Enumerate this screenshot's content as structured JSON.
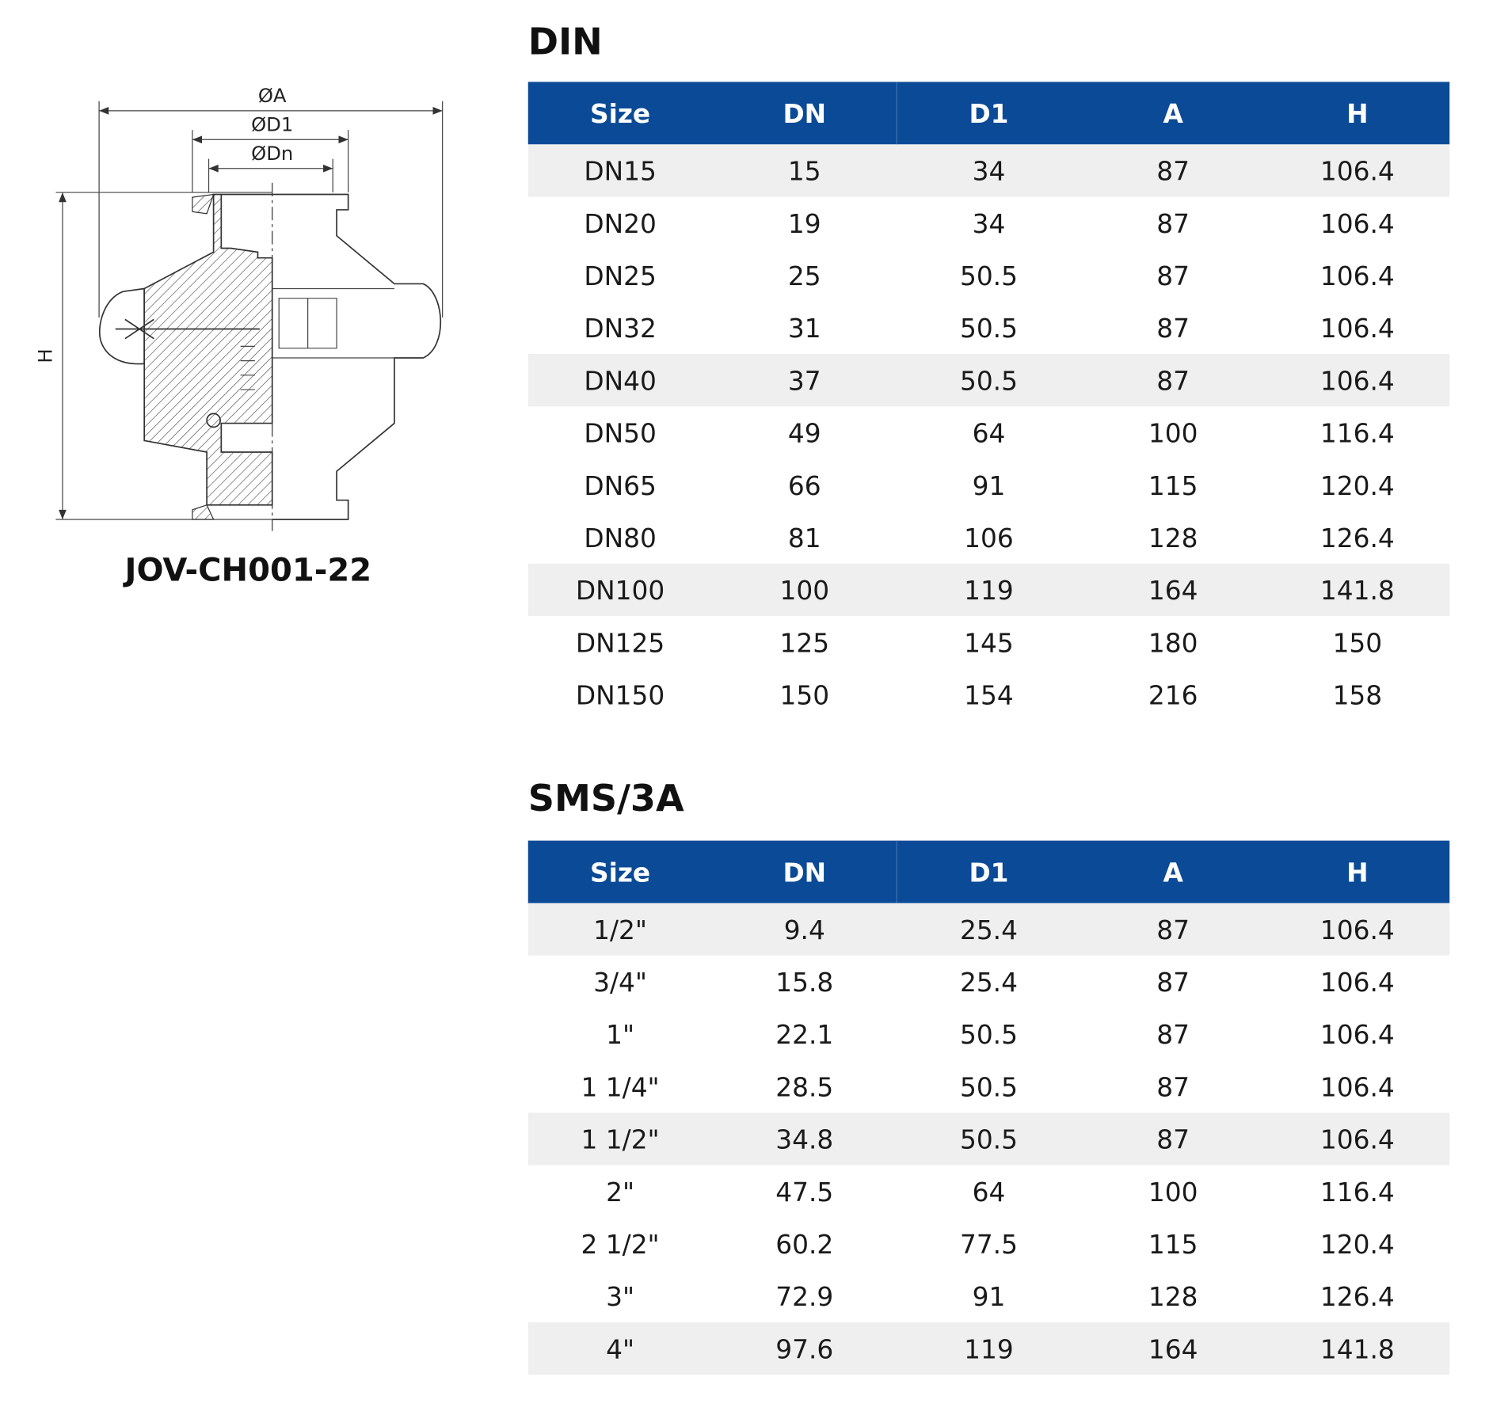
{
  "drawing": {
    "labels": {
      "a": "ØA",
      "d1": "ØD1",
      "dn": "ØDn",
      "h": "H"
    },
    "model": "JOV-CH001-22"
  },
  "tables": [
    {
      "title": "DIN",
      "headers": [
        "Size",
        "DN",
        "D1",
        "A",
        "H"
      ],
      "rows": [
        [
          "DN15",
          15,
          34,
          87,
          106.4
        ],
        [
          "DN20",
          19,
          34,
          87,
          106.4
        ],
        [
          "DN25",
          25,
          50.5,
          87,
          106.4
        ],
        [
          "DN32",
          31,
          50.5,
          87,
          106.4
        ],
        [
          "DN40",
          37,
          50.5,
          87,
          106.4
        ],
        [
          "DN50",
          49,
          64,
          100,
          116.4
        ],
        [
          "DN65",
          66,
          91,
          115,
          120.4
        ],
        [
          "DN80",
          81,
          106,
          128,
          126.4
        ],
        [
          "DN100",
          100,
          119,
          164,
          141.8
        ],
        [
          "DN125",
          125,
          145,
          180,
          150
        ],
        [
          "DN150",
          150,
          154,
          216,
          158
        ]
      ]
    },
    {
      "title": "SMS/3A",
      "headers": [
        "Size",
        "DN",
        "D1",
        "A",
        "H"
      ],
      "rows": [
        [
          "1/2\"",
          9.4,
          25.4,
          87,
          106.4
        ],
        [
          "3/4\"",
          15.8,
          25.4,
          87,
          106.4
        ],
        [
          "1\"",
          22.1,
          50.5,
          87,
          106.4
        ],
        [
          "1 1/4\"",
          28.5,
          50.5,
          87,
          106.4
        ],
        [
          "1 1/2\"",
          34.8,
          50.5,
          87,
          106.4
        ],
        [
          "2\"",
          47.5,
          64,
          100,
          116.4
        ],
        [
          "2 1/2\"",
          60.2,
          77.5,
          115,
          120.4
        ],
        [
          "3\"",
          72.9,
          91,
          128,
          126.4
        ],
        [
          "4\"",
          97.6,
          119,
          164,
          141.8
        ]
      ]
    }
  ]
}
